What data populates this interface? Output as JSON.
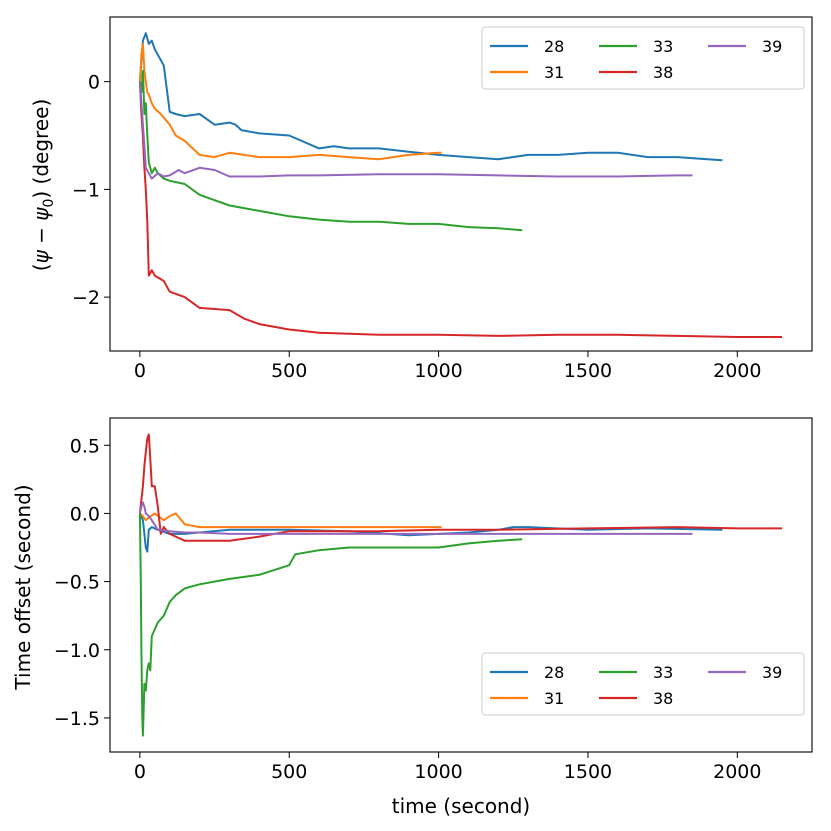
{
  "chart_data": [
    {
      "type": "line",
      "title": "",
      "xlabel": "",
      "ylabel_parts": [
        "(",
        "ψ",
        " − ",
        "ψ",
        "0",
        ") (degree)"
      ],
      "xlim": [
        -100,
        2250
      ],
      "ylim": [
        -2.5,
        0.6
      ],
      "xticks": [
        0,
        500,
        1000,
        1500,
        2000
      ],
      "xtick_labels": [
        "0",
        "500",
        "1000",
        "1500",
        "2000"
      ],
      "yticks": [
        0,
        -1,
        -2
      ],
      "ytick_labels": [
        "0",
        "−1",
        "−2"
      ],
      "legend": {
        "position": "upper right",
        "ncol": 3
      },
      "series": [
        {
          "name": "28",
          "color": "#1f77b4",
          "x": [
            0,
            10,
            20,
            25,
            30,
            40,
            50,
            70,
            80,
            100,
            120,
            150,
            200,
            250,
            300,
            320,
            340,
            400,
            500,
            600,
            650,
            700,
            800,
            900,
            1000,
            1100,
            1200,
            1300,
            1400,
            1500,
            1600,
            1700,
            1800,
            1900,
            1950
          ],
          "y": [
            0.0,
            0.38,
            0.45,
            0.4,
            0.35,
            0.38,
            0.3,
            0.2,
            0.15,
            -0.28,
            -0.3,
            -0.32,
            -0.3,
            -0.4,
            -0.38,
            -0.4,
            -0.45,
            -0.48,
            -0.5,
            -0.62,
            -0.6,
            -0.62,
            -0.62,
            -0.65,
            -0.68,
            -0.7,
            -0.72,
            -0.68,
            -0.68,
            -0.66,
            -0.66,
            -0.7,
            -0.7,
            -0.72,
            -0.73
          ]
        },
        {
          "name": "31",
          "color": "#ff7f0e",
          "x": [
            0,
            5,
            10,
            15,
            20,
            25,
            30,
            40,
            50,
            70,
            100,
            120,
            150,
            200,
            250,
            300,
            400,
            500,
            600,
            700,
            800,
            900,
            1000,
            1010
          ],
          "y": [
            0.0,
            0.25,
            0.35,
            0.1,
            0.0,
            -0.1,
            -0.12,
            -0.2,
            -0.25,
            -0.3,
            -0.4,
            -0.5,
            -0.55,
            -0.68,
            -0.7,
            -0.66,
            -0.7,
            -0.7,
            -0.68,
            -0.7,
            -0.72,
            -0.68,
            -0.66,
            -0.66
          ]
        },
        {
          "name": "33",
          "color": "#2ca02c",
          "x": [
            0,
            5,
            10,
            15,
            20,
            25,
            30,
            40,
            50,
            60,
            80,
            100,
            150,
            200,
            250,
            300,
            400,
            500,
            600,
            700,
            800,
            900,
            1000,
            1100,
            1200,
            1280
          ],
          "y": [
            0.0,
            -0.1,
            0.1,
            -0.3,
            -0.2,
            -0.5,
            -0.75,
            -0.85,
            -0.8,
            -0.85,
            -0.9,
            -0.92,
            -0.95,
            -1.05,
            -1.1,
            -1.15,
            -1.2,
            -1.25,
            -1.28,
            -1.3,
            -1.3,
            -1.32,
            -1.32,
            -1.35,
            -1.36,
            -1.38
          ]
        },
        {
          "name": "38",
          "color": "#d62728",
          "x": [
            0,
            5,
            10,
            15,
            20,
            25,
            30,
            40,
            50,
            80,
            100,
            150,
            200,
            300,
            350,
            400,
            500,
            600,
            800,
            1000,
            1200,
            1400,
            1600,
            1800,
            2000,
            2150
          ],
          "y": [
            0.0,
            -0.3,
            -0.5,
            -0.8,
            -1.0,
            -1.3,
            -1.8,
            -1.75,
            -1.8,
            -1.85,
            -1.95,
            -2.0,
            -2.1,
            -2.12,
            -2.2,
            -2.25,
            -2.3,
            -2.33,
            -2.35,
            -2.35,
            -2.36,
            -2.35,
            -2.35,
            -2.36,
            -2.37,
            -2.37
          ]
        },
        {
          "name": "39",
          "color": "#9467bd",
          "x": [
            0,
            5,
            10,
            15,
            20,
            30,
            40,
            60,
            80,
            100,
            130,
            150,
            200,
            250,
            300,
            400,
            500,
            600,
            800,
            1000,
            1200,
            1400,
            1600,
            1800,
            1850
          ],
          "y": [
            0.0,
            -0.2,
            -0.4,
            -0.6,
            -0.8,
            -0.85,
            -0.9,
            -0.85,
            -0.88,
            -0.87,
            -0.82,
            -0.85,
            -0.8,
            -0.82,
            -0.88,
            -0.88,
            -0.87,
            -0.87,
            -0.86,
            -0.86,
            -0.87,
            -0.88,
            -0.88,
            -0.87,
            -0.87
          ]
        }
      ]
    },
    {
      "type": "line",
      "title": "",
      "xlabel": "time (second)",
      "ylabel": "Time offset (second)",
      "xlim": [
        -100,
        2250
      ],
      "ylim": [
        -1.75,
        0.7
      ],
      "xticks": [
        0,
        500,
        1000,
        1500,
        2000
      ],
      "xtick_labels": [
        "0",
        "500",
        "1000",
        "1500",
        "2000"
      ],
      "yticks": [
        0.5,
        0.0,
        -0.5,
        -1.0,
        -1.5
      ],
      "ytick_labels": [
        "0.5",
        "0.0",
        "−0.5",
        "−1.0",
        "−1.5"
      ],
      "legend": {
        "position": "lower right",
        "ncol": 3
      },
      "series": [
        {
          "name": "28",
          "color": "#1f77b4",
          "x": [
            0,
            10,
            15,
            20,
            25,
            30,
            40,
            60,
            100,
            150,
            200,
            300,
            500,
            700,
            900,
            1100,
            1200,
            1250,
            1300,
            1500,
            1700,
            1950
          ],
          "y": [
            0.0,
            -0.05,
            -0.15,
            -0.25,
            -0.28,
            -0.12,
            -0.1,
            -0.12,
            -0.15,
            -0.15,
            -0.14,
            -0.12,
            -0.12,
            -0.13,
            -0.16,
            -0.14,
            -0.12,
            -0.1,
            -0.1,
            -0.12,
            -0.11,
            -0.12
          ]
        },
        {
          "name": "31",
          "color": "#ff7f0e",
          "x": [
            0,
            10,
            20,
            30,
            50,
            80,
            100,
            120,
            150,
            200,
            300,
            500,
            700,
            900,
            1010
          ],
          "y": [
            0.0,
            -0.02,
            -0.05,
            -0.03,
            0.0,
            -0.05,
            -0.02,
            0.0,
            -0.08,
            -0.1,
            -0.1,
            -0.1,
            -0.1,
            -0.1,
            -0.1
          ]
        },
        {
          "name": "33",
          "color": "#2ca02c",
          "x": [
            0,
            3,
            5,
            8,
            10,
            15,
            20,
            25,
            30,
            35,
            40,
            50,
            60,
            80,
            100,
            120,
            150,
            200,
            300,
            400,
            500,
            520,
            600,
            700,
            800,
            900,
            1000,
            1100,
            1200,
            1280
          ],
          "y": [
            0.0,
            -0.5,
            -1.0,
            -1.5,
            -1.63,
            -1.25,
            -1.3,
            -1.15,
            -1.1,
            -1.15,
            -0.9,
            -0.85,
            -0.8,
            -0.75,
            -0.65,
            -0.6,
            -0.55,
            -0.52,
            -0.48,
            -0.45,
            -0.38,
            -0.3,
            -0.27,
            -0.25,
            -0.25,
            -0.25,
            -0.25,
            -0.22,
            -0.2,
            -0.19
          ]
        },
        {
          "name": "38",
          "color": "#d62728",
          "x": [
            0,
            10,
            15,
            20,
            25,
            30,
            35,
            40,
            50,
            60,
            70,
            80,
            100,
            150,
            200,
            300,
            400,
            500,
            600,
            800,
            1000,
            1200,
            1500,
            1800,
            2000,
            2150
          ],
          "y": [
            0.0,
            0.2,
            0.35,
            0.45,
            0.55,
            0.58,
            0.4,
            0.2,
            0.2,
            0.05,
            -0.15,
            -0.1,
            -0.15,
            -0.2,
            -0.2,
            -0.2,
            -0.17,
            -0.13,
            -0.13,
            -0.13,
            -0.12,
            -0.12,
            -0.11,
            -0.1,
            -0.11,
            -0.11
          ]
        },
        {
          "name": "39",
          "color": "#9467bd",
          "x": [
            0,
            5,
            10,
            15,
            20,
            30,
            40,
            60,
            100,
            150,
            200,
            300,
            500,
            700,
            1000,
            1300,
            1500,
            1700,
            1850
          ],
          "y": [
            0.0,
            0.05,
            0.08,
            0.05,
            0.0,
            -0.02,
            -0.05,
            -0.12,
            -0.13,
            -0.14,
            -0.14,
            -0.15,
            -0.15,
            -0.15,
            -0.15,
            -0.15,
            -0.15,
            -0.15,
            -0.15
          ]
        }
      ]
    }
  ]
}
